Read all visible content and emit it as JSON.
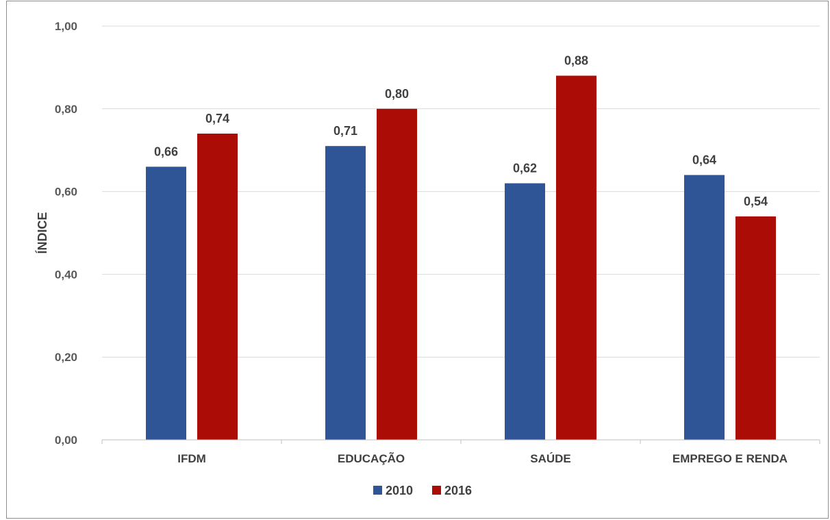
{
  "chart_data": {
    "type": "bar",
    "categories": [
      "IFDM",
      "EDUCAÇÃO",
      "SAÚDE",
      "EMPREGO E RENDA"
    ],
    "series": [
      {
        "name": "2010",
        "values": [
          0.66,
          0.71,
          0.62,
          0.64
        ],
        "labels": [
          "0,66",
          "0,71",
          "0,62",
          "0,64"
        ],
        "color": "#2f5597"
      },
      {
        "name": "2016",
        "values": [
          0.74,
          0.8,
          0.88,
          0.54
        ],
        "labels": [
          "0,74",
          "0,80",
          "0,88",
          "0,54"
        ],
        "color": "#ac0c06"
      }
    ],
    "ylabel": "ÍNDICE",
    "ylim": [
      0,
      1
    ],
    "yticks": [
      0,
      0.2,
      0.4,
      0.6,
      0.8,
      1.0
    ],
    "ytick_labels": [
      "0,00",
      "0,20",
      "0,40",
      "0,60",
      "0,80",
      "1,00"
    ],
    "grid": true,
    "gridline_color": "#d9d9d9",
    "legend_position": "bottom"
  }
}
